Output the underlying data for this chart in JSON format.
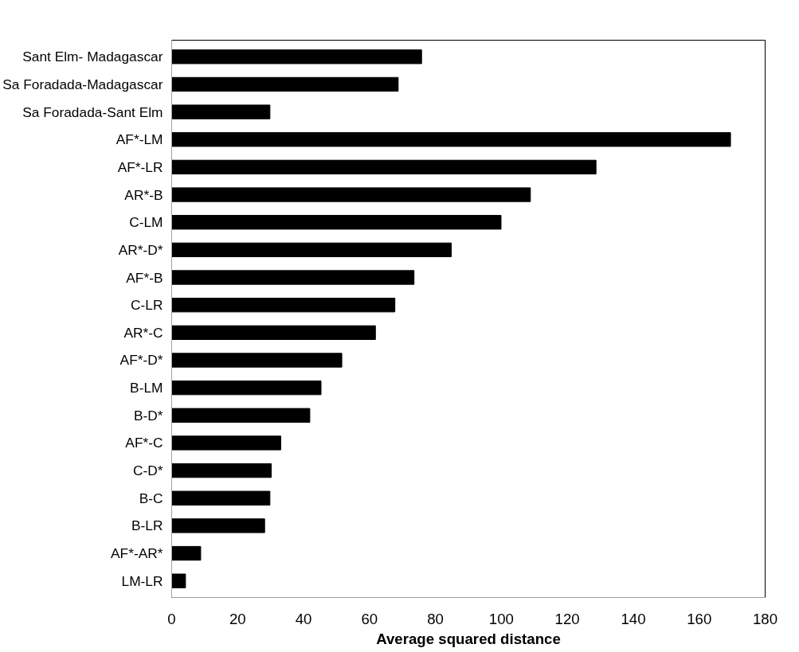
{
  "chart_data": {
    "type": "bar",
    "orientation": "horizontal",
    "xlabel": "Average squared distance",
    "categories": [
      "Sant Elm- Madagascar",
      "Sa Foradada-Madagascar",
      "Sa Foradada-Sant Elm",
      "AF*-LM",
      "AF*-LR",
      "AR*-B",
      "C-LM",
      "AR*-D*",
      "AF*-B",
      "C-LR",
      "AR*-C",
      "AF*-D*",
      "B-LM",
      "B-D*",
      "AF*-C",
      "C-D*",
      "B-C",
      "B-LR",
      "AF*-AR*",
      "LM-LR"
    ],
    "values": [
      75.8,
      68.7,
      29.8,
      169.5,
      128.7,
      108.8,
      99.9,
      84.8,
      73.5,
      67.7,
      61.8,
      51.6,
      45.3,
      41.9,
      33.1,
      30.2,
      29.8,
      28.2,
      8.8,
      4.2
    ],
    "color": "#000000",
    "xlim": [
      0,
      180
    ],
    "xticks": [
      0,
      20,
      40,
      60,
      80,
      100,
      120,
      140,
      160,
      180
    ],
    "grid": false
  }
}
